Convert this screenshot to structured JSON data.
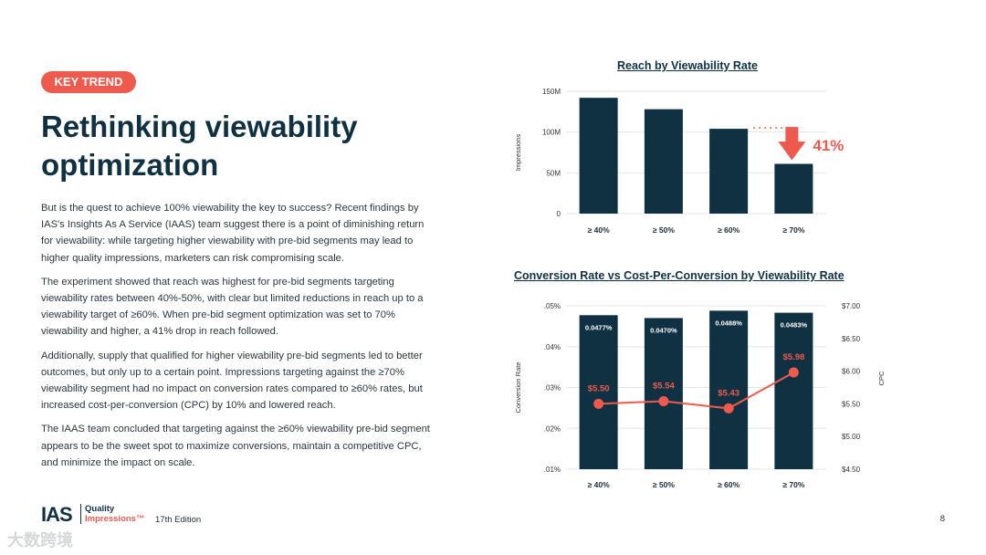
{
  "badge": "KEY TREND",
  "title": "Rethinking viewability optimization",
  "paragraphs": [
    "But is the quest to achieve 100% viewability the key to success? Recent findings by IAS's Insights As A Service (IAAS) team suggest there is a point of diminishing return for viewability: while targeting higher viewability with pre-bid segments may lead to higher quality impressions, marketers can risk compromising scale.",
    "The experiment showed that reach was highest for pre-bid segments targeting viewability rates between 40%-50%, with clear but limited reductions in reach up to a viewability target of ≥60%. When pre-bid segment optimization was set to 70% viewability and higher, a 41% drop in reach followed.",
    "Additionally, supply that qualified for higher viewability pre-bid segments led to better outcomes, but only up to a certain point. Impressions targeting against the ≥70% viewability segment had no impact on conversion rates compared to ≥60% rates, but increased cost-per-conversion (CPC) by 10% and lowered reach.",
    "The IAAS team concluded that targeting against the ≥60% viewability pre-bid segment appears to be the sweet spot to maximize conversions, maintain a competitive CPC, and minimize the impact on scale."
  ],
  "footer": {
    "logo": "IAS",
    "quality": "Quality",
    "impressions": "Impressions™",
    "edition": "17th Edition",
    "page": "8",
    "watermark": "大数跨境"
  },
  "colors": {
    "bar": "#0f3142",
    "accent": "#ef5a4e"
  },
  "chart_data": [
    {
      "type": "bar",
      "title": "Reach by Viewability Rate",
      "categories": [
        "≥ 40%",
        "≥ 50%",
        "≥ 60%",
        "≥ 70%"
      ],
      "values": [
        142,
        128,
        104,
        61
      ],
      "unit": "M",
      "ylabel": "Impressions",
      "ylim": [
        0,
        150
      ],
      "yticks": [
        "0",
        "50M",
        "100M",
        "150M"
      ],
      "annotation": "41%",
      "grid": true
    },
    {
      "type": "bar+line",
      "title": "Conversion Rate vs Cost-Per-Conversion by Viewability Rate",
      "categories": [
        "≥ 40%",
        "≥ 50%",
        "≥ 60%",
        "≥ 70%"
      ],
      "series": [
        {
          "name": "Conversion Rate",
          "type": "bar",
          "values": [
            0.0477,
            0.047,
            0.0488,
            0.0483
          ],
          "labels": [
            "0.0477%",
            "0.0470%",
            "0.0488%",
            "0.0483%"
          ]
        },
        {
          "name": "CPC",
          "type": "line",
          "values": [
            5.5,
            5.54,
            5.43,
            5.98
          ],
          "labels": [
            "$5.50",
            "$5.54",
            "$5.43",
            "$5.98"
          ]
        }
      ],
      "ylabel": "Conversion Rate",
      "y2label": "CPC",
      "ylim": [
        0.01,
        0.05
      ],
      "y2lim": [
        4.5,
        7.0
      ],
      "yticks": [
        ".05%",
        ".04%",
        ".03%",
        ".02%",
        ".01%"
      ],
      "y2ticks": [
        "$7.00",
        "$6.50",
        "$6.00",
        "$5.50",
        "$5.00",
        "$4.50"
      ],
      "grid": true
    }
  ]
}
